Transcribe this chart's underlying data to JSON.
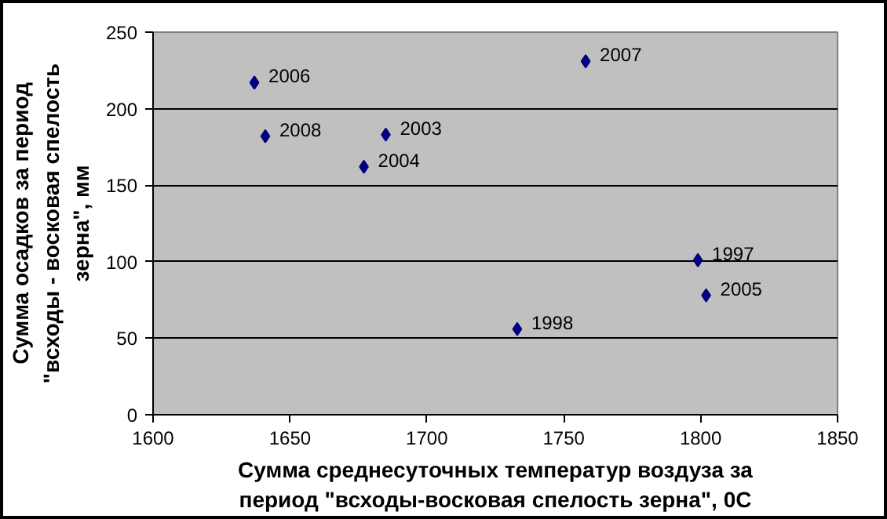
{
  "chart_data": {
    "type": "scatter",
    "xlabel": "Сумма среднесуточных температур воздуза за\nпериод \"всходы-восковая спелость зерна\", 0С",
    "ylabel": "Сумма осадков за период\n\"всходы - восковая спелость\nзерна\", мм",
    "x": [
      1637,
      1641,
      1677,
      1685,
      1758,
      1799,
      1802,
      1733
    ],
    "series": [
      {
        "color": "#000080",
        "values": [
          217,
          182,
          162,
          183,
          231,
          101,
          78,
          56
        ]
      }
    ],
    "annotations": [
      {
        "text": "2006",
        "x": 1637,
        "y": 217
      },
      {
        "text": "2008",
        "x": 1641,
        "y": 182
      },
      {
        "text": "2004",
        "x": 1677,
        "y": 162
      },
      {
        "text": "2003",
        "x": 1685,
        "y": 183
      },
      {
        "text": "2007",
        "x": 1758,
        "y": 231
      },
      {
        "text": "1997",
        "x": 1799,
        "y": 101
      },
      {
        "text": "2005",
        "x": 1802,
        "y": 78
      },
      {
        "text": "1998",
        "x": 1733,
        "y": 56
      }
    ],
    "xlim": [
      1600,
      1850
    ],
    "ylim": [
      0,
      250
    ],
    "xticks": [
      1600,
      1650,
      1700,
      1750,
      1800,
      1850
    ],
    "yticks": [
      0,
      50,
      100,
      150,
      200,
      250
    ],
    "grid": "y",
    "marker": "diamond"
  }
}
